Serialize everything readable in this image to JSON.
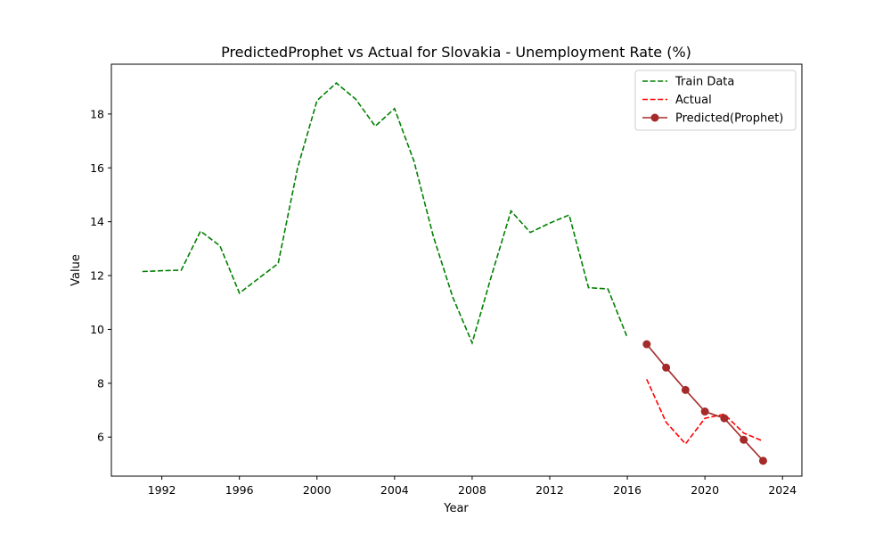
{
  "chart_data": {
    "type": "line",
    "title": "PredictedProphet vs Actual for Slovakia - Unemployment Rate (%)",
    "xlabel": "Year",
    "ylabel": "Value",
    "xlim": [
      1989.4,
      2025.0
    ],
    "ylim": [
      4.55,
      19.85
    ],
    "x_ticks": [
      "1992",
      "1996",
      "2000",
      "2004",
      "2008",
      "2012",
      "2016",
      "2020",
      "2024"
    ],
    "y_ticks": [
      "6",
      "8",
      "10",
      "12",
      "14",
      "16",
      "18"
    ],
    "grid": false,
    "legend_position": "top-right",
    "series": [
      {
        "name": "Train Data",
        "color": "#008000",
        "style": "dashed",
        "marker": "none",
        "x": [
          1991,
          1992,
          1993,
          1994,
          1995,
          1996,
          1997,
          1998,
          1999,
          2000,
          2001,
          2002,
          2003,
          2004,
          2005,
          2006,
          2007,
          2008,
          2009,
          2010,
          2011,
          2012,
          2013,
          2014,
          2015,
          2016
        ],
        "y": [
          12.15,
          12.18,
          12.2,
          13.65,
          13.1,
          11.35,
          11.9,
          12.45,
          16.0,
          18.5,
          19.15,
          18.55,
          17.55,
          18.2,
          16.25,
          13.45,
          11.2,
          9.5,
          12.0,
          14.4,
          13.6,
          13.95,
          14.25,
          11.55,
          11.5,
          9.7
        ]
      },
      {
        "name": "Actual",
        "color": "#ff0000",
        "style": "dashed",
        "marker": "none",
        "x": [
          2017,
          2018,
          2019,
          2020,
          2021,
          2022,
          2023
        ],
        "y": [
          8.15,
          6.55,
          5.75,
          6.7,
          6.85,
          6.15,
          5.85
        ]
      },
      {
        "name": "Predicted(Prophet)",
        "color": "#a52a2a",
        "style": "solid",
        "marker": "circle",
        "x": [
          2017,
          2018,
          2019,
          2020,
          2021,
          2022,
          2023
        ],
        "y": [
          9.45,
          8.58,
          7.75,
          6.95,
          6.7,
          5.9,
          5.12
        ]
      }
    ]
  }
}
